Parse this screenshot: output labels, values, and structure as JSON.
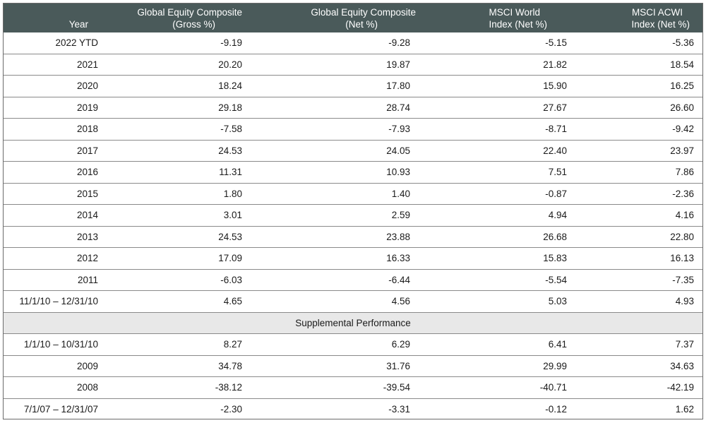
{
  "table": {
    "headers": [
      {
        "line1": "",
        "line2": "Year"
      },
      {
        "line1": "Global Equity Composite",
        "line2": "(Gross %)"
      },
      {
        "line1": "Global Equity Composite",
        "line2": "(Net %)"
      },
      {
        "line1": "MSCI World",
        "line2": "Index (Net %)"
      },
      {
        "line1": "MSCI ACWI",
        "line2": "Index (Net %)"
      }
    ],
    "rows": [
      {
        "year": "2022 YTD",
        "gross": "-9.19",
        "net": "-9.28",
        "world": "-5.15",
        "acwi": "-5.36"
      },
      {
        "year": "2021",
        "gross": "20.20",
        "net": "19.87",
        "world": "21.82",
        "acwi": "18.54"
      },
      {
        "year": "2020",
        "gross": "18.24",
        "net": "17.80",
        "world": "15.90",
        "acwi": "16.25"
      },
      {
        "year": "2019",
        "gross": "29.18",
        "net": "28.74",
        "world": "27.67",
        "acwi": "26.60"
      },
      {
        "year": "2018",
        "gross": "-7.58",
        "net": "-7.93",
        "world": "-8.71",
        "acwi": "-9.42"
      },
      {
        "year": "2017",
        "gross": "24.53",
        "net": "24.05",
        "world": "22.40",
        "acwi": "23.97"
      },
      {
        "year": "2016",
        "gross": "11.31",
        "net": "10.93",
        "world": "7.51",
        "acwi": "7.86"
      },
      {
        "year": "2015",
        "gross": "1.80",
        "net": "1.40",
        "world": "-0.87",
        "acwi": "-2.36"
      },
      {
        "year": "2014",
        "gross": "3.01",
        "net": "2.59",
        "world": "4.94",
        "acwi": "4.16"
      },
      {
        "year": "2013",
        "gross": "24.53",
        "net": "23.88",
        "world": "26.68",
        "acwi": "22.80"
      },
      {
        "year": "2012",
        "gross": "17.09",
        "net": "16.33",
        "world": "15.83",
        "acwi": "16.13"
      },
      {
        "year": "2011",
        "gross": "-6.03",
        "net": "-6.44",
        "world": "-5.54",
        "acwi": "-7.35"
      },
      {
        "year": "11/1/10 – 12/31/10",
        "gross": "4.65",
        "net": "4.56",
        "world": "5.03",
        "acwi": "4.93"
      }
    ],
    "section_label": "Supplemental Performance",
    "supplemental_rows": [
      {
        "year": "1/1/10 – 10/31/10",
        "gross": "8.27",
        "net": "6.29",
        "world": "6.41",
        "acwi": "7.37"
      },
      {
        "year": "2009",
        "gross": "34.78",
        "net": "31.76",
        "world": "29.99",
        "acwi": "34.63"
      },
      {
        "year": "2008",
        "gross": "-38.12",
        "net": "-39.54",
        "world": "-40.71",
        "acwi": "-42.19"
      },
      {
        "year": "7/1/07 – 12/31/07",
        "gross": "-2.30",
        "net": "-3.31",
        "world": "-0.12",
        "acwi": "1.62"
      }
    ]
  }
}
